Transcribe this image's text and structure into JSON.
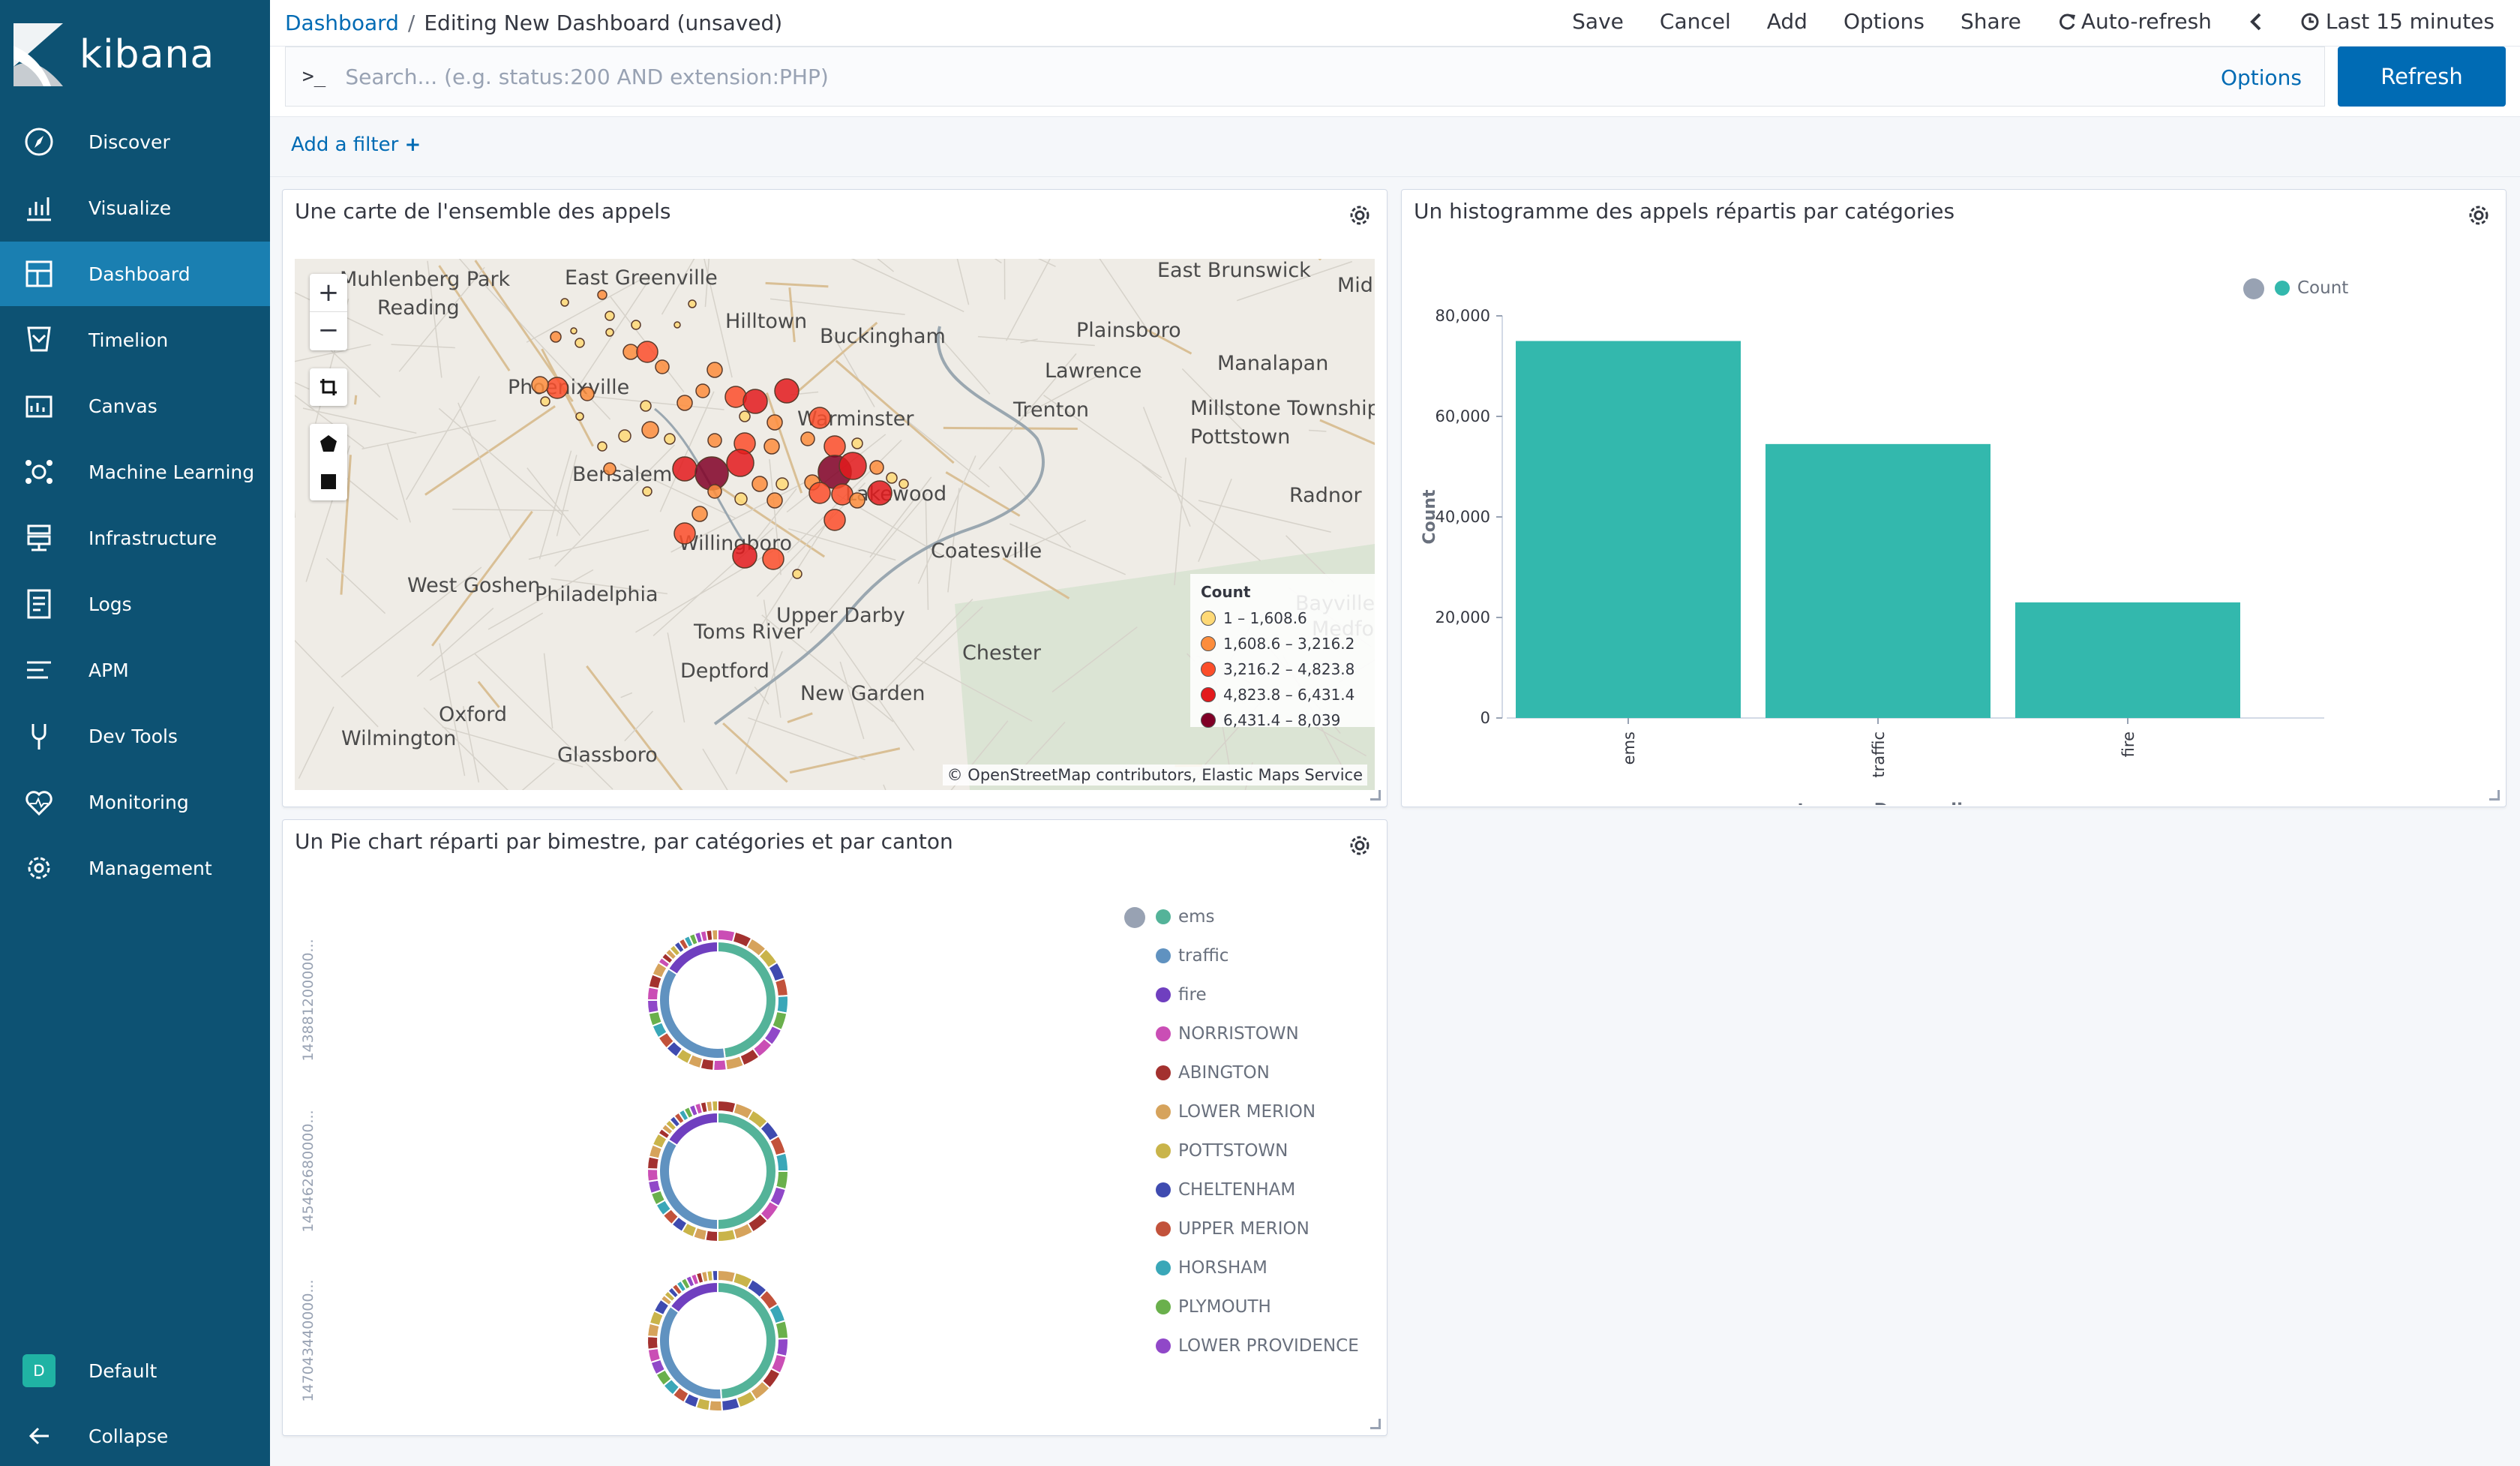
{
  "app": {
    "name": "kibana"
  },
  "nav": [
    {
      "label": "Discover",
      "icon": "compass-icon"
    },
    {
      "label": "Visualize",
      "icon": "visualize-icon"
    },
    {
      "label": "Dashboard",
      "icon": "dashboard-icon",
      "active": true
    },
    {
      "label": "Timelion",
      "icon": "timelion-icon"
    },
    {
      "label": "Canvas",
      "icon": "canvas-icon"
    },
    {
      "label": "Machine Learning",
      "icon": "machine-learning-icon"
    },
    {
      "label": "Infrastructure",
      "icon": "infrastructure-icon"
    },
    {
      "label": "Logs",
      "icon": "logs-icon"
    },
    {
      "label": "APM",
      "icon": "apm-icon"
    },
    {
      "label": "Dev Tools",
      "icon": "dev-tools-icon"
    },
    {
      "label": "Monitoring",
      "icon": "monitoring-icon"
    },
    {
      "label": "Management",
      "icon": "gear-icon"
    }
  ],
  "nav_bottom": {
    "space_label": "Default",
    "space_badge": "D",
    "collapse_label": "Collapse"
  },
  "breadcrumb": {
    "root": "Dashboard",
    "separator": "/",
    "current": "Editing New Dashboard (unsaved)"
  },
  "top_menu": {
    "save": "Save",
    "cancel": "Cancel",
    "add": "Add",
    "options": "Options",
    "share": "Share",
    "auto_refresh": "Auto-refresh",
    "time_range": "Last 15 minutes"
  },
  "search": {
    "prompt": ">_",
    "placeholder": "Search... (e.g. status:200 AND extension:PHP)",
    "options_label": "Options",
    "refresh_label": "Refresh"
  },
  "filters": {
    "add_filter_label": "Add a filter",
    "add_icon": "+"
  },
  "panels": {
    "map": {
      "title": "Une carte de l'ensemble des appels",
      "zoom_in": "+",
      "zoom_out": "−",
      "cities": [
        "Muhlenberg Park",
        "Reading",
        "East Greenville",
        "Hilltown",
        "Buckingham",
        "East Brunswick",
        "Mid",
        "Plainsboro",
        "Lawrence",
        "Manalapan",
        "Trenton",
        "Millstone Township",
        "Pottstown",
        "Warminster",
        "Phoenixville",
        "Bensalem",
        "Lakewood",
        "Radnor",
        "Willingboro",
        "Coatesville",
        "West Goshen",
        "Philadelphia",
        "Upper Darby",
        "Toms River",
        "Bayville",
        "Medford",
        "Chester",
        "Deptford",
        "New Garden",
        "Oxford",
        "Wilmington",
        "Glassboro"
      ],
      "legend": {
        "title": "Count",
        "entries": [
          {
            "label": "1 – 1,608.6",
            "color": "#fed976"
          },
          {
            "label": "1,608.6 – 3,216.2",
            "color": "#fd8d3c"
          },
          {
            "label": "3,216.2 – 4,823.8",
            "color": "#fc4e2a"
          },
          {
            "label": "4,823.8 – 6,431.4",
            "color": "#e31a1c"
          },
          {
            "label": "6,431.4 – 8,039",
            "color": "#800026"
          }
        ]
      },
      "attribution": {
        "prefix": "© ",
        "osm": "OpenStreetMap",
        "rest": " contributors, ",
        "ems": "Elastic Maps Service"
      }
    },
    "histogram": {
      "title": "Un histogramme des appels répartis par catégories",
      "legend_label": "Count",
      "color": "#33b8ad"
    },
    "pie": {
      "title": "Un Pie chart réparti par bimestre, par catégories et par canton",
      "row_labels": [
        "143881200000...",
        "145462680000...",
        "147043440000..."
      ],
      "legend": [
        {
          "label": "ems",
          "color": "#54b399"
        },
        {
          "label": "traffic",
          "color": "#6092c0"
        },
        {
          "label": "fire",
          "color": "#6f3fbf"
        },
        {
          "label": "NORRISTOWN",
          "color": "#ca4eb5"
        },
        {
          "label": "ABINGTON",
          "color": "#a3312f"
        },
        {
          "label": "LOWER MERION",
          "color": "#d6a35c"
        },
        {
          "label": "POTTSTOWN",
          "color": "#c9b44a"
        },
        {
          "label": "CHELTENHAM",
          "color": "#3f4bb0"
        },
        {
          "label": "UPPER MERION",
          "color": "#c2523b"
        },
        {
          "label": "HORSHAM",
          "color": "#3aa7b8"
        },
        {
          "label": "PLYMOUTH",
          "color": "#6ab04c"
        },
        {
          "label": "LOWER PROVIDENCE",
          "color": "#9048c8"
        }
      ]
    }
  },
  "chart_data": [
    {
      "type": "bar",
      "categories": [
        "ems",
        "traffic",
        "fire"
      ],
      "series": [
        {
          "name": "Count",
          "values": [
            75000,
            54500,
            23000
          ]
        }
      ],
      "xlabel": "category: Descending",
      "ylabel": "Count",
      "ylim": [
        0,
        80000
      ],
      "yticks": [
        "0",
        "20,000",
        "40,000",
        "60,000",
        "80,000"
      ],
      "ytick_values": [
        0,
        20000,
        40000,
        60000,
        80000
      ],
      "legend_position": "top-right"
    },
    {
      "type": "pie",
      "rows": [
        {
          "inner": [
            {
              "name": "ems",
              "value": 48
            },
            {
              "name": "traffic",
              "value": 36
            },
            {
              "name": "fire",
              "value": 16
            }
          ]
        },
        {
          "inner": [
            {
              "name": "ems",
              "value": 50
            },
            {
              "name": "traffic",
              "value": 34
            },
            {
              "name": "fire",
              "value": 16
            }
          ]
        },
        {
          "inner": [
            {
              "name": "ems",
              "value": 49
            },
            {
              "name": "traffic",
              "value": 36
            },
            {
              "name": "fire",
              "value": 15
            }
          ]
        }
      ]
    }
  ]
}
